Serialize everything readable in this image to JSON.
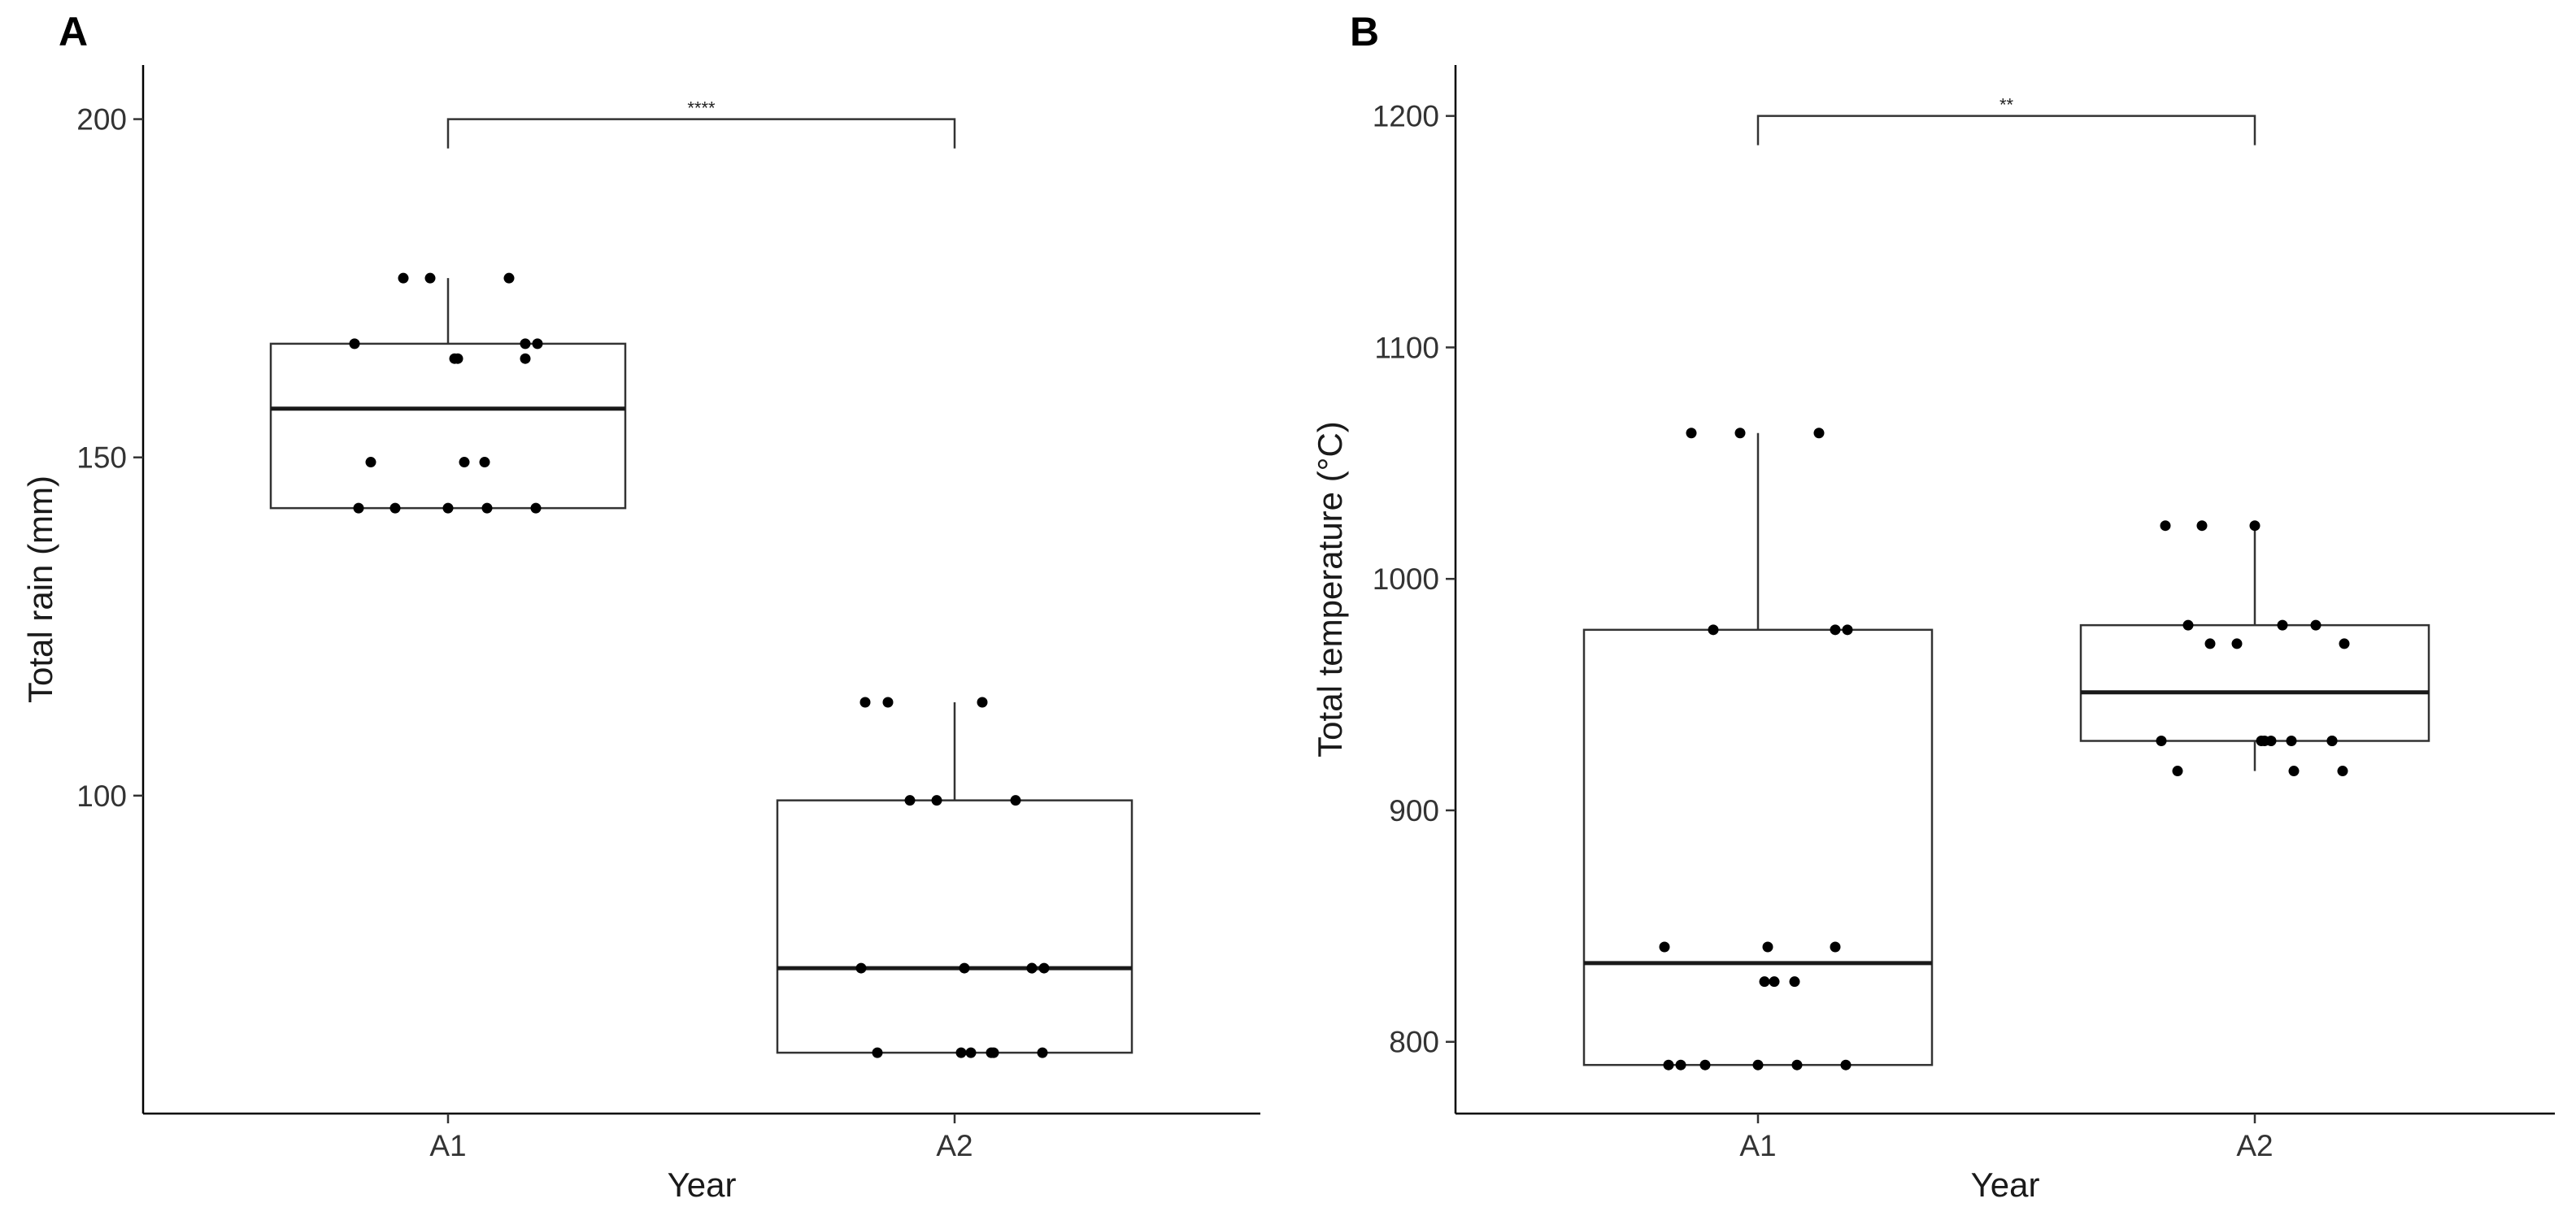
{
  "chart_data": [
    {
      "type": "box",
      "panel_label": "A",
      "xlabel": "Year",
      "ylabel": "Total rain (mm)",
      "categories": [
        "A1",
        "A2"
      ],
      "ylim": [
        53,
        208
      ],
      "yticks": [
        100,
        150,
        200
      ],
      "box_stats": [
        {
          "category": "A1",
          "min": 142.5,
          "q1": 142.5,
          "median": 157.2,
          "q3": 166.8,
          "max": 176.5
        },
        {
          "category": "A2",
          "min": 62.0,
          "q1": 62.0,
          "median": 74.5,
          "q3": 99.3,
          "max": 113.8
        }
      ],
      "points": [
        [
          142.5,
          142.5,
          142.5,
          142.5,
          142.5,
          149.3,
          149.3,
          149.3,
          164.6,
          164.6,
          164.6,
          166.8,
          166.8,
          166.8,
          176.5,
          176.5,
          176.5
        ],
        [
          62.0,
          62.0,
          62.0,
          62.0,
          62.0,
          62.0,
          74.5,
          74.5,
          74.5,
          74.5,
          74.5,
          99.3,
          99.3,
          99.3,
          113.8,
          113.8,
          113.8
        ]
      ],
      "significance": {
        "from": "A1",
        "to": "A2",
        "y": 200,
        "label": "****"
      }
    },
    {
      "type": "box",
      "panel_label": "B",
      "xlabel": "Year",
      "ylabel": "Total temperature (°C)",
      "categories": [
        "A1",
        "A2"
      ],
      "ylim": [
        769,
        1222
      ],
      "yticks": [
        800,
        900,
        1000,
        1100,
        1200
      ],
      "box_stats": [
        {
          "category": "A1",
          "min": 790,
          "q1": 790,
          "median": 834,
          "q3": 978,
          "max": 1063
        },
        {
          "category": "A2",
          "min": 917,
          "q1": 930,
          "median": 951,
          "q3": 980,
          "max": 1023
        }
      ],
      "points": [
        [
          790,
          790,
          790,
          790,
          790,
          790,
          826,
          826,
          826,
          841,
          841,
          841,
          978,
          978,
          978,
          1063,
          1063,
          1063
        ],
        [
          917,
          917,
          917,
          930,
          930,
          930,
          930,
          930,
          930,
          930,
          972,
          972,
          972,
          980,
          980,
          980,
          1023,
          1023,
          1023
        ]
      ],
      "significance": {
        "from": "A1",
        "to": "A2",
        "y": 1200,
        "label": "**"
      }
    }
  ]
}
